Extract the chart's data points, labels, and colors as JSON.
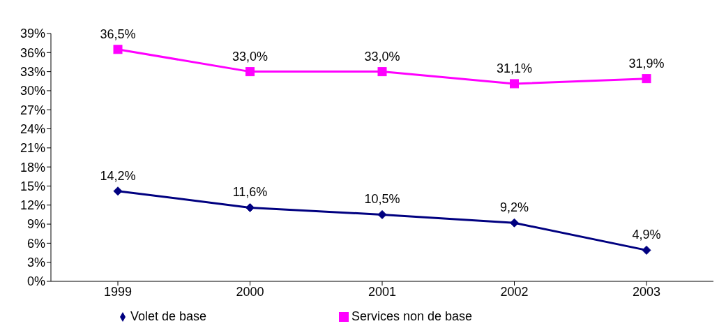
{
  "chart_data": {
    "type": "line",
    "categories": [
      "1999",
      "2000",
      "2001",
      "2002",
      "2003"
    ],
    "series": [
      {
        "name": "Volet de base",
        "color": "#000080",
        "marker": "diamond",
        "values": [
          14.2,
          11.6,
          10.5,
          9.2,
          4.9
        ],
        "value_labels": [
          "14,2%",
          "11,6%",
          "10,5%",
          "9,2%",
          "4,9%"
        ]
      },
      {
        "name": "Services non de base",
        "color": "#ff00ff",
        "marker": "square",
        "values": [
          36.5,
          33.0,
          33.0,
          31.1,
          31.9
        ],
        "value_labels": [
          "36,5%",
          "33,0%",
          "33,0%",
          "31,1%",
          "31,9%"
        ]
      }
    ],
    "ylim": [
      0,
      39
    ],
    "yticks": [
      {
        "value": 0,
        "label": "0%"
      },
      {
        "value": 3,
        "label": "3%"
      },
      {
        "value": 6,
        "label": "6%"
      },
      {
        "value": 9,
        "label": "9%"
      },
      {
        "value": 12,
        "label": "12%"
      },
      {
        "value": 15,
        "label": "15%"
      },
      {
        "value": 18,
        "label": "18%"
      },
      {
        "value": 21,
        "label": "21%"
      },
      {
        "value": 24,
        "label": "24%"
      },
      {
        "value": 27,
        "label": "27%"
      },
      {
        "value": 30,
        "label": "30%"
      },
      {
        "value": 33,
        "label": "33%"
      },
      {
        "value": 36,
        "label": "36%"
      },
      {
        "value": 39,
        "label": "39%"
      }
    ],
    "grid": false,
    "legend": "bottom"
  }
}
